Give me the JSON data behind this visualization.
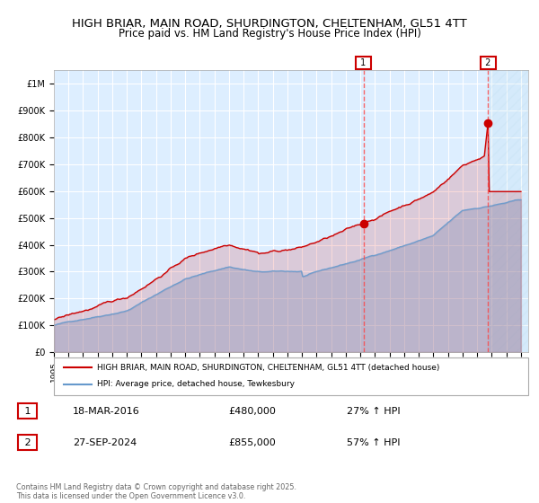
{
  "title": "HIGH BRIAR, MAIN ROAD, SHURDINGTON, CHELTENHAM, GL51 4TT",
  "subtitle": "Price paid vs. HM Land Registry's House Price Index (HPI)",
  "title_fontsize": 10,
  "subtitle_fontsize": 9,
  "line1_label": "HIGH BRIAR, MAIN ROAD, SHURDINGTON, CHELTENHAM, GL51 4TT (detached house)",
  "line2_label": "HPI: Average price, detached house, Tewkesbury",
  "line1_color": "#cc0000",
  "line2_color": "#6699cc",
  "marker1_color": "#cc0000",
  "dashed_color": "#ff4444",
  "bg_color": "#ddeeff",
  "plot_bg": "#ddeeff",
  "grid_color": "#ffffff",
  "annotation1": {
    "num": "1",
    "date": "18-MAR-2016",
    "price": "£480,000",
    "hpi": "27% ↑ HPI"
  },
  "annotation2": {
    "num": "2",
    "date": "27-SEP-2024",
    "price": "£855,000",
    "hpi": "57% ↑ HPI"
  },
  "ylim": [
    0,
    1050000
  ],
  "xlim_start": 1995.0,
  "xlim_end": 2027.5,
  "yticks": [
    0,
    100000,
    200000,
    300000,
    400000,
    500000,
    600000,
    700000,
    800000,
    900000,
    1000000
  ],
  "ytick_labels": [
    "£0",
    "£100K",
    "£200K",
    "£300K",
    "£400K",
    "£500K",
    "£600K",
    "£700K",
    "£800K",
    "£900K",
    "£1M"
  ],
  "xticks": [
    1995,
    1996,
    1997,
    1998,
    1999,
    2000,
    2001,
    2002,
    2003,
    2004,
    2005,
    2006,
    2007,
    2008,
    2009,
    2010,
    2011,
    2012,
    2013,
    2014,
    2015,
    2016,
    2017,
    2018,
    2019,
    2020,
    2021,
    2022,
    2023,
    2024,
    2025,
    2026,
    2027
  ],
  "marker1_year": 2016.21,
  "marker1_price": 480000,
  "marker2_year": 2024.75,
  "marker2_price": 855000,
  "vline1_year": 2016.21,
  "vline2_year": 2024.75,
  "footnote": "Contains HM Land Registry data © Crown copyright and database right 2025.\nThis data is licensed under the Open Government Licence v3.0.",
  "hatched_region_start": 2024.75
}
